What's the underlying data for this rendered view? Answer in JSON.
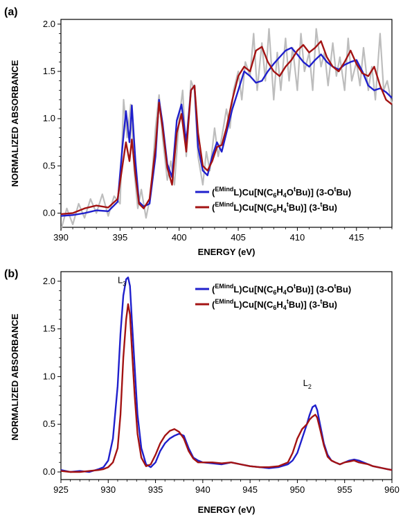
{
  "chart_data": [
    {
      "panel": "(a)",
      "type": "line",
      "xlabel": "ENERGY (eV)",
      "ylabel": "NORMALIZED ABSORBANCE",
      "xlim": [
        390,
        418
      ],
      "ylim": [
        -0.15,
        2.05
      ],
      "xticks": [
        390,
        395,
        400,
        405,
        410,
        415
      ],
      "yticks": [
        0.0,
        0.5,
        1.0,
        1.5,
        2.0
      ],
      "ytick_labels": [
        "0.0",
        "0.5",
        "1.0",
        "1.5",
        "2.0"
      ],
      "legend_position": "bottom-right",
      "grid": false,
      "series": [
        {
          "name": "(EMindL)Cu[N(C6H4OtBu)] (3-OtBu)",
          "color": "#1f1fcc",
          "x": [
            390.0,
            391.0,
            392.0,
            393.0,
            394.0,
            394.8,
            395.2,
            395.5,
            395.8,
            396.0,
            396.3,
            396.6,
            397.0,
            397.5,
            398.0,
            398.3,
            398.6,
            399.0,
            399.4,
            399.8,
            400.2,
            400.6,
            401.0,
            401.3,
            401.6,
            402.0,
            402.4,
            402.8,
            403.2,
            403.6,
            404.0,
            404.5,
            405.0,
            405.5,
            406.0,
            406.5,
            407.0,
            407.5,
            408.0,
            408.5,
            409.0,
            409.5,
            410.0,
            410.5,
            411.0,
            411.5,
            412.0,
            412.5,
            413.0,
            413.5,
            414.0,
            414.5,
            415.0,
            415.5,
            416.0,
            416.5,
            417.0,
            417.5,
            418.0
          ],
          "y": [
            -0.03,
            -0.02,
            0.0,
            0.03,
            0.02,
            0.12,
            0.7,
            1.08,
            0.75,
            1.14,
            0.55,
            0.12,
            0.07,
            0.1,
            0.6,
            1.2,
            0.95,
            0.52,
            0.38,
            0.98,
            1.15,
            0.75,
            1.3,
            1.35,
            0.7,
            0.45,
            0.4,
            0.6,
            0.75,
            0.65,
            0.85,
            1.1,
            1.3,
            1.5,
            1.45,
            1.38,
            1.4,
            1.5,
            1.58,
            1.65,
            1.72,
            1.75,
            1.68,
            1.6,
            1.55,
            1.62,
            1.68,
            1.6,
            1.55,
            1.52,
            1.57,
            1.6,
            1.62,
            1.5,
            1.35,
            1.3,
            1.32,
            1.28,
            1.22
          ]
        },
        {
          "name": "(EMindL)Cu[N(C6H4tBu)] (3-tBu)",
          "color": "#a31313",
          "x": [
            390.0,
            391.0,
            392.0,
            393.0,
            394.0,
            394.8,
            395.2,
            395.5,
            395.8,
            396.0,
            396.3,
            396.6,
            397.0,
            397.5,
            398.0,
            398.3,
            398.6,
            399.0,
            399.4,
            399.8,
            400.2,
            400.6,
            401.0,
            401.3,
            401.6,
            402.0,
            402.4,
            402.8,
            403.2,
            403.6,
            404.0,
            404.5,
            405.0,
            405.5,
            406.0,
            406.5,
            407.0,
            407.5,
            408.0,
            408.5,
            409.0,
            409.5,
            410.0,
            410.5,
            411.0,
            411.5,
            412.0,
            412.5,
            413.0,
            413.5,
            414.0,
            414.5,
            415.0,
            415.5,
            416.0,
            416.5,
            417.0,
            417.5,
            418.0
          ],
          "y": [
            -0.01,
            0.0,
            0.05,
            0.08,
            0.06,
            0.15,
            0.5,
            0.75,
            0.55,
            0.78,
            0.4,
            0.1,
            0.05,
            0.15,
            0.7,
            1.17,
            0.9,
            0.48,
            0.3,
            0.85,
            1.05,
            0.65,
            1.3,
            1.35,
            0.85,
            0.5,
            0.45,
            0.55,
            0.7,
            0.72,
            0.9,
            1.2,
            1.45,
            1.55,
            1.5,
            1.72,
            1.76,
            1.6,
            1.5,
            1.45,
            1.55,
            1.62,
            1.72,
            1.78,
            1.7,
            1.75,
            1.82,
            1.65,
            1.55,
            1.5,
            1.6,
            1.72,
            1.58,
            1.48,
            1.45,
            1.55,
            1.35,
            1.2,
            1.15
          ]
        },
        {
          "name": "",
          "color": "#bdbdbd",
          "x": [
            390.0,
            390.5,
            391.0,
            391.5,
            392.0,
            392.5,
            393.0,
            393.5,
            394.0,
            394.5,
            395.0,
            395.3,
            395.6,
            395.9,
            396.2,
            396.5,
            396.8,
            397.2,
            397.6,
            398.0,
            398.3,
            398.6,
            399.0,
            399.3,
            399.6,
            400.0,
            400.3,
            400.6,
            401.0,
            401.3,
            401.6,
            402.0,
            402.3,
            402.6,
            403.0,
            403.3,
            403.6,
            404.0,
            404.3,
            404.6,
            405.0,
            405.3,
            405.6,
            406.0,
            406.3,
            406.6,
            407.0,
            407.3,
            407.6,
            408.0,
            408.3,
            408.6,
            409.0,
            409.3,
            409.6,
            410.0,
            410.3,
            410.6,
            411.0,
            411.3,
            411.6,
            412.0,
            412.3,
            412.6,
            413.0,
            413.3,
            413.6,
            414.0,
            414.3,
            414.6,
            415.0,
            415.3,
            415.6,
            416.0,
            416.3,
            416.6,
            417.0,
            417.3,
            417.6,
            418.0
          ],
          "y": [
            -0.18,
            0.05,
            -0.12,
            0.1,
            -0.05,
            0.15,
            0.0,
            0.2,
            -0.03,
            0.18,
            0.1,
            1.2,
            0.8,
            1.15,
            0.45,
            0.05,
            0.25,
            -0.05,
            0.2,
            0.9,
            1.25,
            0.8,
            0.35,
            0.55,
            0.3,
            1.0,
            1.3,
            0.6,
            1.4,
            1.3,
            0.6,
            0.3,
            0.65,
            0.45,
            0.9,
            0.6,
            0.8,
            1.1,
            0.9,
            1.3,
            1.5,
            1.2,
            1.6,
            1.45,
            1.9,
            1.3,
            1.8,
            1.4,
            1.95,
            1.2,
            1.7,
            1.3,
            1.85,
            1.4,
            1.75,
            1.3,
            1.9,
            1.5,
            1.7,
            1.3,
            1.95,
            1.55,
            1.7,
            1.35,
            1.8,
            1.45,
            1.65,
            1.3,
            1.85,
            1.4,
            1.6,
            1.35,
            1.75,
            1.3,
            1.55,
            1.2,
            1.9,
            1.3,
            1.4,
            1.15
          ]
        }
      ]
    },
    {
      "panel": "(b)",
      "type": "line",
      "xlabel": "ENERGY (eV)",
      "ylabel": "NORMALIZED ABSORBANCE",
      "xlim": [
        925,
        960
      ],
      "ylim": [
        -0.08,
        2.1
      ],
      "xticks": [
        925,
        930,
        935,
        940,
        945,
        950,
        955,
        960
      ],
      "yticks": [
        0.0,
        0.5,
        1.0,
        1.5,
        2.0
      ],
      "ytick_labels": [
        "0.0",
        "0.5",
        "1.0",
        "1.5",
        "2.0"
      ],
      "legend_position": "top-right",
      "grid": false,
      "annotations": [
        {
          "text": "L",
          "sub": "3",
          "x": 931.0,
          "y": 1.98
        },
        {
          "text": "L",
          "sub": "2",
          "x": 950.6,
          "y": 0.9
        }
      ],
      "series": [
        {
          "name": "(EMindL)Cu[N(C6H4OtBu)] (3-OtBu)",
          "color": "#1f1fcc",
          "x": [
            925,
            926,
            927,
            928,
            929,
            929.5,
            930,
            930.5,
            931,
            931.3,
            931.6,
            931.9,
            932.1,
            932.3,
            932.5,
            932.8,
            933.1,
            933.5,
            934,
            934.5,
            935,
            935.5,
            936,
            936.5,
            937,
            937.5,
            938,
            938.5,
            939,
            939.5,
            940,
            941,
            942,
            943,
            944,
            945,
            946,
            947,
            948,
            949,
            949.5,
            950,
            950.5,
            951,
            951.3,
            951.6,
            951.9,
            952.1,
            952.4,
            952.8,
            953.2,
            953.6,
            954,
            954.5,
            955,
            955.5,
            956,
            956.5,
            957,
            957.5,
            958,
            958.5,
            959,
            959.5,
            960
          ],
          "y": [
            0.02,
            0.0,
            0.01,
            0.0,
            0.03,
            0.05,
            0.12,
            0.35,
            0.9,
            1.45,
            1.85,
            2.02,
            2.04,
            1.95,
            1.6,
            1.1,
            0.6,
            0.25,
            0.08,
            0.05,
            0.1,
            0.22,
            0.3,
            0.35,
            0.38,
            0.4,
            0.38,
            0.25,
            0.15,
            0.12,
            0.1,
            0.09,
            0.08,
            0.1,
            0.08,
            0.06,
            0.05,
            0.04,
            0.05,
            0.08,
            0.12,
            0.2,
            0.35,
            0.5,
            0.6,
            0.68,
            0.7,
            0.65,
            0.5,
            0.3,
            0.18,
            0.12,
            0.1,
            0.08,
            0.1,
            0.12,
            0.13,
            0.12,
            0.1,
            0.08,
            0.06,
            0.05,
            0.04,
            0.03,
            0.02
          ]
        },
        {
          "name": "(EMindL)Cu[N(C6H4tBu)] (3-tBu)",
          "color": "#a31313",
          "x": [
            925,
            926,
            927,
            928,
            929,
            929.5,
            930,
            930.5,
            931,
            931.3,
            931.6,
            931.9,
            932.1,
            932.3,
            932.5,
            932.8,
            933.1,
            933.5,
            934,
            934.5,
            935,
            935.5,
            936,
            936.5,
            937,
            937.5,
            938,
            938.5,
            939,
            939.5,
            940,
            941,
            942,
            943,
            944,
            945,
            946,
            947,
            948,
            949,
            949.5,
            950,
            950.5,
            951,
            951.3,
            951.6,
            951.9,
            952.1,
            952.4,
            952.8,
            953.2,
            953.6,
            954,
            954.5,
            955,
            955.5,
            956,
            956.5,
            957,
            957.5,
            958,
            958.5,
            959,
            959.5,
            960
          ],
          "y": [
            0.01,
            0.0,
            0.0,
            0.01,
            0.02,
            0.03,
            0.05,
            0.1,
            0.25,
            0.6,
            1.2,
            1.6,
            1.76,
            1.65,
            1.3,
            0.8,
            0.4,
            0.15,
            0.06,
            0.08,
            0.18,
            0.3,
            0.38,
            0.43,
            0.45,
            0.42,
            0.35,
            0.22,
            0.14,
            0.1,
            0.1,
            0.1,
            0.09,
            0.1,
            0.08,
            0.06,
            0.05,
            0.05,
            0.06,
            0.1,
            0.2,
            0.35,
            0.45,
            0.5,
            0.55,
            0.58,
            0.6,
            0.57,
            0.45,
            0.28,
            0.16,
            0.12,
            0.1,
            0.08,
            0.1,
            0.11,
            0.12,
            0.1,
            0.09,
            0.08,
            0.06,
            0.05,
            0.04,
            0.03,
            0.02
          ]
        }
      ]
    }
  ],
  "legend": {
    "series1_prefix": "(",
    "series1_sup": "EMind",
    "series1_mid": "L)Cu[N(C",
    "series1_sub1": "6",
    "series1_h": "H",
    "series1_sub2": "4",
    "series1_o": "O",
    "series1_sup2": "t",
    "series1_tail": "Bu)] (3-O",
    "series1_sup3": "t",
    "series1_end": "Bu)",
    "series2_prefix": "(",
    "series2_sup": "EMind",
    "series2_mid": "L)Cu[N(C",
    "series2_sub1": "6",
    "series2_h": "H",
    "series2_sub2": "4",
    "series2_sup2": "t",
    "series2_tail": "Bu)] (3-",
    "series2_sup3": "t",
    "series2_end": "Bu)"
  }
}
